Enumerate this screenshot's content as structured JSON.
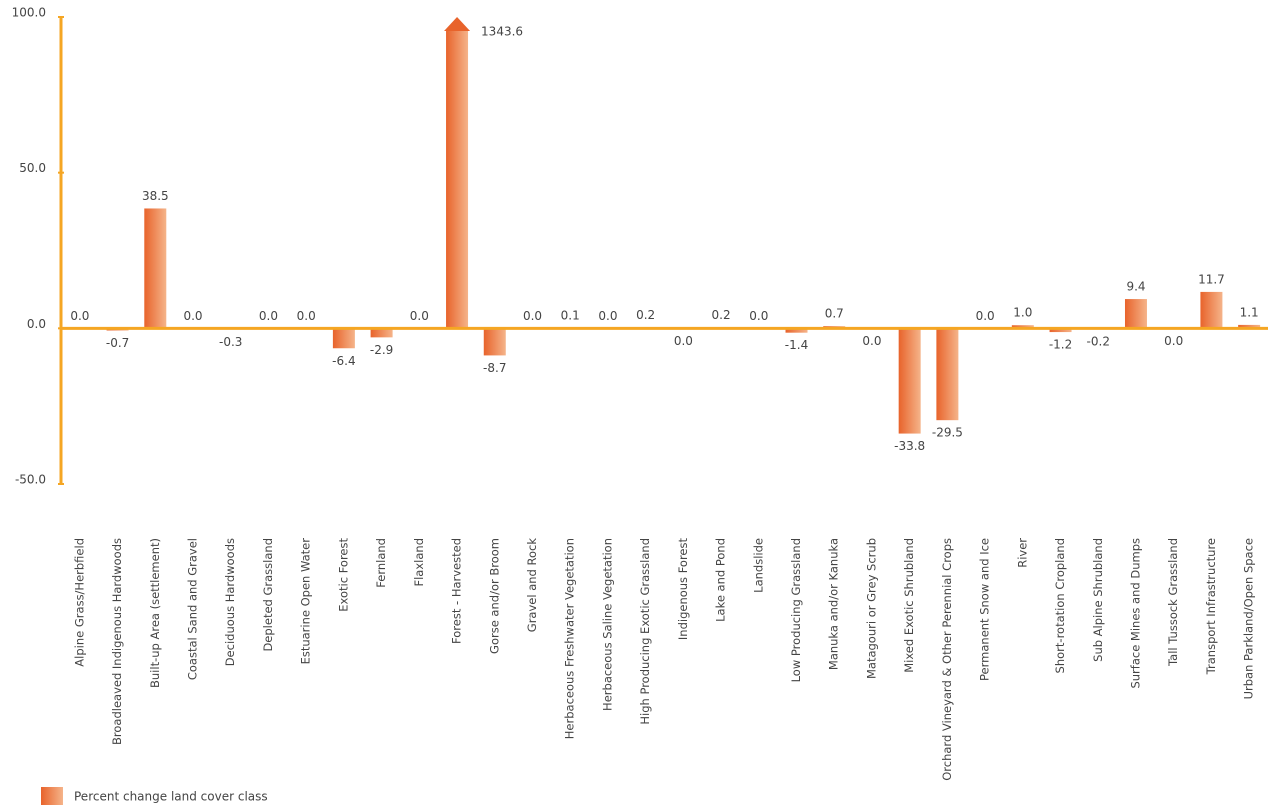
{
  "chart_data": {
    "type": "bar",
    "categories": [
      "Alpine Grass/Herbfield",
      "Broadleaved Indigenous Hardwoods",
      "Built-up Area (settlement)",
      "Coastal Sand and Gravel",
      "Deciduous Hardwoods",
      "Depleted Grassland",
      "Estuarine Open Water",
      "Exotic Forest",
      "Fernland",
      "Flaxland",
      "Forest - Harvested",
      "Gorse and/or Broom",
      "Gravel and Rock",
      "Herbaceous Freshwater Vegetation",
      "Herbaceous Saline Vegetation",
      "High Producing Exotic Grassland",
      "Indigenous Forest",
      "Lake and Pond",
      "Landslide",
      "Low Producing Grassland",
      "Manuka and/or Kanuka",
      "Matagouri or Grey Scrub",
      "Mixed Exotic Shrubland",
      "Orchard Vineyard & Other Perennial Crops",
      "Permanent Snow and Ice",
      "River",
      "Short-rotation Cropland",
      "Sub Alpine Shrubland",
      "Surface Mines and Dumps",
      "Tall Tussock Grassland",
      "Transport Infrastructure",
      "Urban Parkland/Open Space"
    ],
    "series": [
      {
        "name": "Percent change land cover class",
        "color": "#e8632b",
        "values": [
          0,
          -0.7,
          38.5,
          0,
          -0.3,
          0,
          0,
          -6.4,
          -2.9,
          0,
          1343.6,
          -8.7,
          0,
          0.1,
          0,
          0.2,
          -0.04,
          0.2,
          0,
          -1.4,
          0.7,
          -0.04,
          -33.8,
          -29.5,
          0,
          1.0,
          -1.2,
          -0.2,
          9.4,
          -0.04,
          11.7,
          1.1
        ],
        "value_labels": [
          "0.0",
          "-0.7",
          "38.5",
          "0.0",
          "-0.3",
          "0.0",
          "0.0",
          "-6.4",
          "-2.9",
          "0.0",
          "1343.6",
          "-8.7",
          "0.0",
          "0.1",
          "0.0",
          "0.2",
          "0.0",
          "0.2",
          "0.0",
          "-1.4",
          "0.7",
          "0.0",
          "-33.8",
          "-29.5",
          "0.0",
          "1.0",
          "-1.2",
          "-0.2",
          "9.4",
          "0.0",
          "11.7",
          "1.1"
        ]
      }
    ],
    "ylim": [
      -50,
      100
    ],
    "yticks": [
      {
        "value": -50,
        "label": "-50.0"
      },
      {
        "value": 0,
        "label": "0.0"
      },
      {
        "value": 50,
        "label": "50.0"
      },
      {
        "value": 100,
        "label": "100.0"
      }
    ],
    "grid": false,
    "legend": "bottom-left"
  }
}
